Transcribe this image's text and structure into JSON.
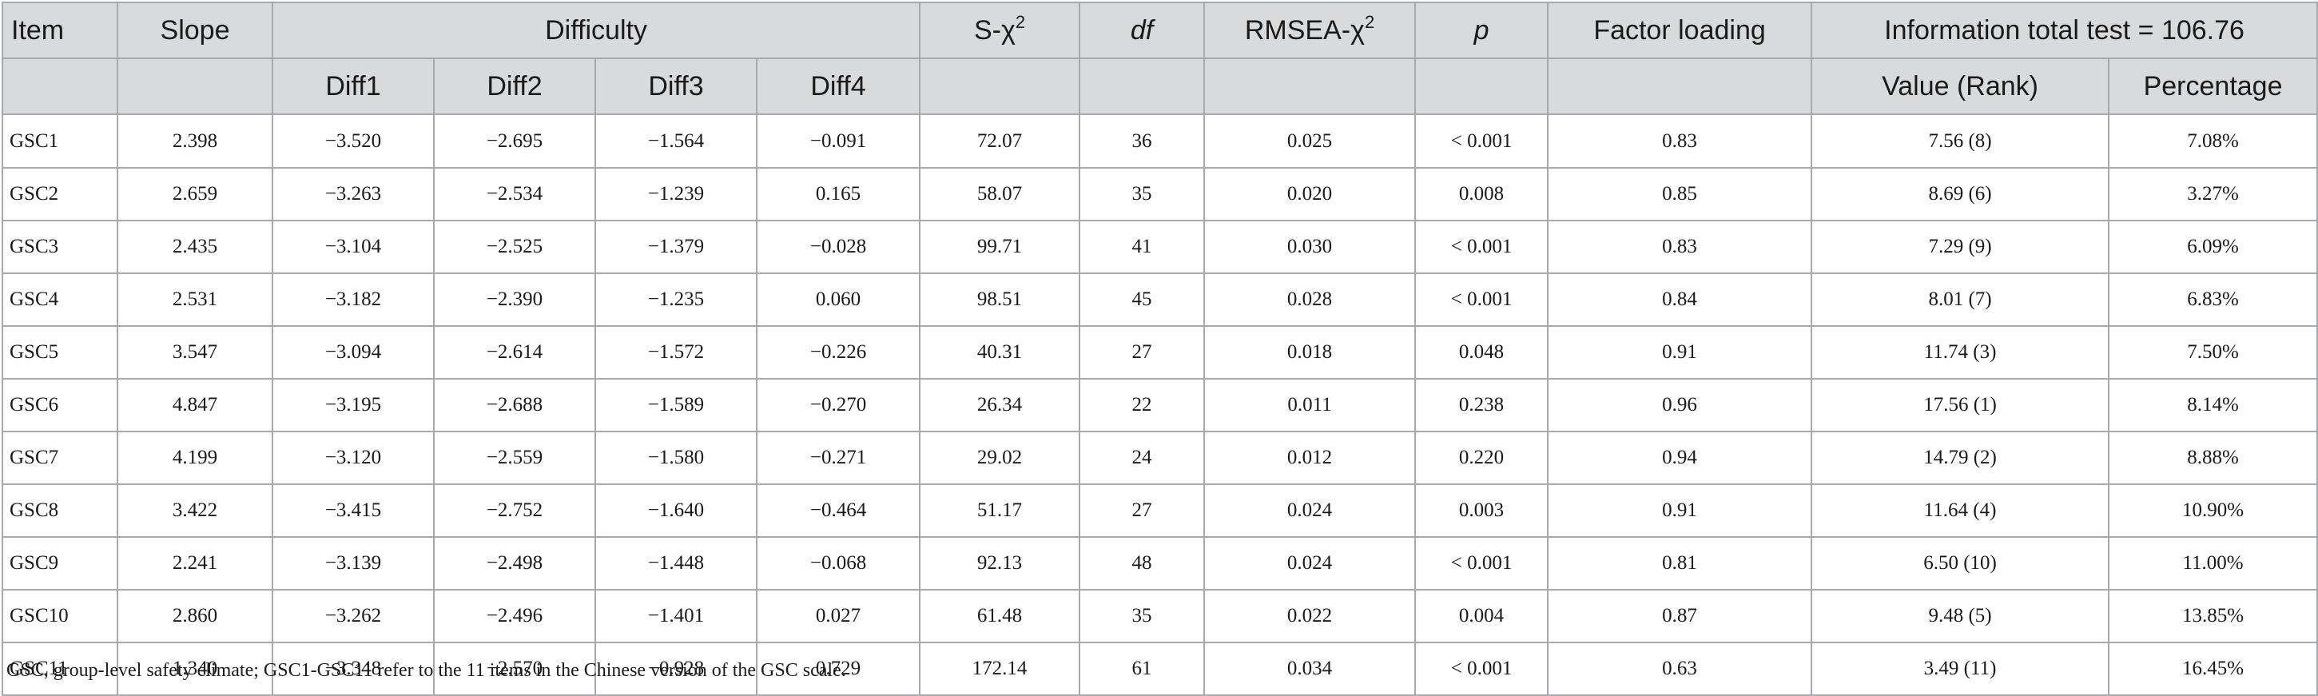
{
  "table": {
    "headers": {
      "item": "Item",
      "slope": "Slope",
      "difficulty": "Difficulty",
      "s_chi_prefix": "S-χ",
      "s_chi_sup": "2",
      "df": "df",
      "rmsea_prefix": "RMSEA-χ",
      "rmsea_sup": "2",
      "p": "p",
      "factor_loading": "Factor loading",
      "information": "Information total test = 106.76",
      "diff1": "Diff1",
      "diff2": "Diff2",
      "diff3": "Diff3",
      "diff4": "Diff4",
      "value_rank": "Value (Rank)",
      "percentage": "Percentage"
    },
    "rows": [
      [
        "GSC1",
        "2.398",
        "−3.520",
        "−2.695",
        "−1.564",
        "−0.091",
        "72.07",
        "36",
        "0.025",
        "< 0.001",
        "0.83",
        "7.56 (8)",
        "7.08%"
      ],
      [
        "GSC2",
        "2.659",
        "−3.263",
        "−2.534",
        "−1.239",
        "0.165",
        "58.07",
        "35",
        "0.020",
        "0.008",
        "0.85",
        "8.69 (6)",
        "3.27%"
      ],
      [
        "GSC3",
        "2.435",
        "−3.104",
        "−2.525",
        "−1.379",
        "−0.028",
        "99.71",
        "41",
        "0.030",
        "< 0.001",
        "0.83",
        "7.29 (9)",
        "6.09%"
      ],
      [
        "GSC4",
        "2.531",
        "−3.182",
        "−2.390",
        "−1.235",
        "0.060",
        "98.51",
        "45",
        "0.028",
        "< 0.001",
        "0.84",
        "8.01 (7)",
        "6.83%"
      ],
      [
        "GSC5",
        "3.547",
        "−3.094",
        "−2.614",
        "−1.572",
        "−0.226",
        "40.31",
        "27",
        "0.018",
        "0.048",
        "0.91",
        "11.74 (3)",
        "7.50%"
      ],
      [
        "GSC6",
        "4.847",
        "−3.195",
        "−2.688",
        "−1.589",
        "−0.270",
        "26.34",
        "22",
        "0.011",
        "0.238",
        "0.96",
        "17.56 (1)",
        "8.14%"
      ],
      [
        "GSC7",
        "4.199",
        "−3.120",
        "−2.559",
        "−1.580",
        "−0.271",
        "29.02",
        "24",
        "0.012",
        "0.220",
        "0.94",
        "14.79 (2)",
        "8.88%"
      ],
      [
        "GSC8",
        "3.422",
        "−3.415",
        "−2.752",
        "−1.640",
        "−0.464",
        "51.17",
        "27",
        "0.024",
        "0.003",
        "0.91",
        "11.64 (4)",
        "10.90%"
      ],
      [
        "GSC9",
        "2.241",
        "−3.139",
        "−2.498",
        "−1.448",
        "−0.068",
        "92.13",
        "48",
        "0.024",
        "< 0.001",
        "0.81",
        "6.50 (10)",
        "11.00%"
      ],
      [
        "GSC10",
        "2.860",
        "−3.262",
        "−2.496",
        "−1.401",
        "0.027",
        "61.48",
        "35",
        "0.022",
        "0.004",
        "0.87",
        "9.48 (5)",
        "13.85%"
      ],
      [
        "GSC11",
        "1.340",
        "−3.348",
        "−2.570",
        "−0.928",
        "0.729",
        "172.14",
        "61",
        "0.034",
        "< 0.001",
        "0.63",
        "3.49 (11)",
        "16.45%"
      ]
    ]
  },
  "footnote": "GSC, group-level safety climate; GSC1-GSC11 refer to the 11 items in the Chinese version of the GSC scale.",
  "colors": {
    "header_background": "#d9dadb",
    "border": "#a7a9ac",
    "text": "#1a1a1a"
  }
}
